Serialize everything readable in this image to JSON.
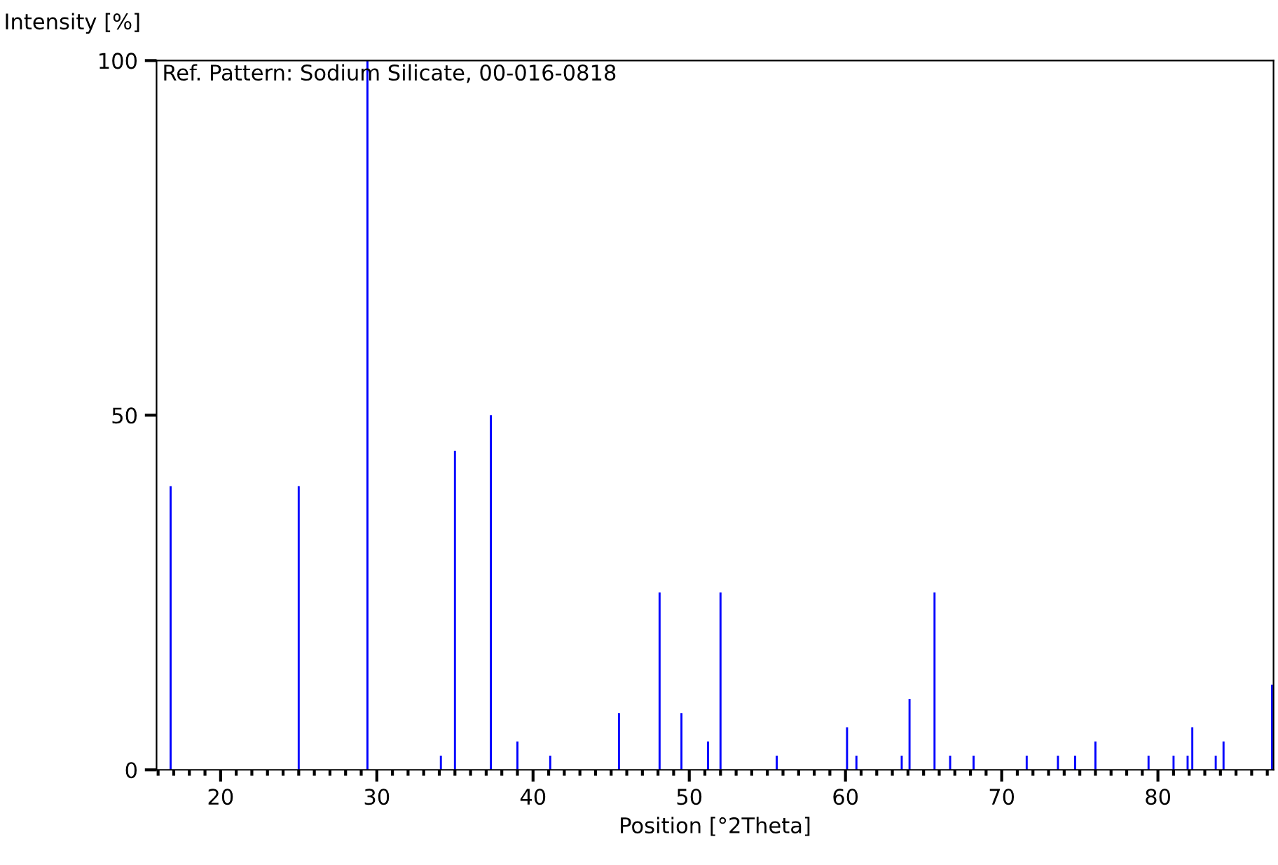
{
  "chart_data": {
    "type": "bar",
    "xlabel": "Position [°2Theta]",
    "ylabel": "Intensity [%]",
    "annotations": [
      "Ref. Pattern: Sodium Silicate, 00-016-0818"
    ],
    "x": [
      16.8,
      25.0,
      29.4,
      34.1,
      35.0,
      37.3,
      39.0,
      41.1,
      45.5,
      48.1,
      49.5,
      51.2,
      52.0,
      55.6,
      60.1,
      60.7,
      63.6,
      64.1,
      65.7,
      66.7,
      68.2,
      71.6,
      73.6,
      74.7,
      76.0,
      79.4,
      81.0,
      81.9,
      82.2,
      83.7,
      84.2,
      87.3
    ],
    "values": [
      40,
      40,
      100,
      2,
      45,
      50,
      4,
      2,
      8,
      25,
      8,
      4,
      25,
      2,
      6,
      2,
      2,
      10,
      25,
      2,
      2,
      2,
      2,
      2,
      4,
      2,
      2,
      2,
      6,
      2,
      4,
      12
    ],
    "color": "#0000ff",
    "xlim": [
      15.9,
      87.4
    ],
    "ylim": [
      0,
      100
    ],
    "xticks": [
      20,
      30,
      40,
      50,
      60,
      70,
      80
    ],
    "yticks": [
      0,
      50,
      100
    ],
    "grid": false
  }
}
